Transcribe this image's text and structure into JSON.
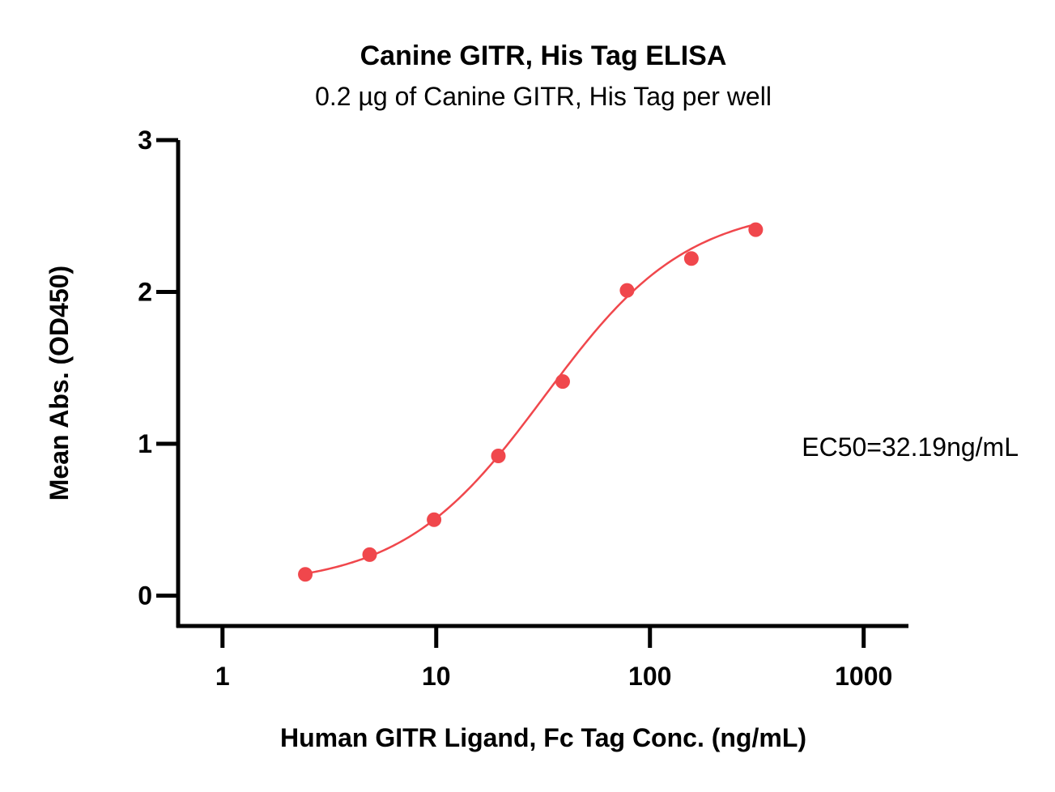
{
  "chart_data": {
    "type": "scatter",
    "title": "Canine GITR, His Tag ELISA",
    "subtitle": "0.2 µg of Canine GITR, His Tag per well",
    "xlabel": "Human GITR Ligand, Fc Tag Conc. (ng/mL)",
    "ylabel": "Mean Abs. (OD450)",
    "x_scale": "log",
    "xlim": [
      0.62,
      1620
    ],
    "ylim": [
      -0.2,
      3
    ],
    "x_ticks": [
      1,
      10,
      100,
      1000
    ],
    "x_tick_labels": [
      "1",
      "10",
      "100",
      "1000"
    ],
    "y_ticks": [
      0,
      1,
      2,
      3
    ],
    "y_tick_labels": [
      "0",
      "1",
      "2",
      "3"
    ],
    "grid": false,
    "legend": "none",
    "series": [
      {
        "color": "#f0474c",
        "x": [
          2.44,
          4.88,
          9.77,
          19.53,
          39.06,
          78.13,
          156.25,
          312.5
        ],
        "y": [
          0.14,
          0.27,
          0.5,
          0.92,
          1.41,
          2.01,
          2.22,
          2.41
        ],
        "fit": "4PL"
      }
    ],
    "annotations": [
      {
        "text": "EC50=32.19ng/mL",
        "x": 1500,
        "y": 1.0
      }
    ]
  }
}
